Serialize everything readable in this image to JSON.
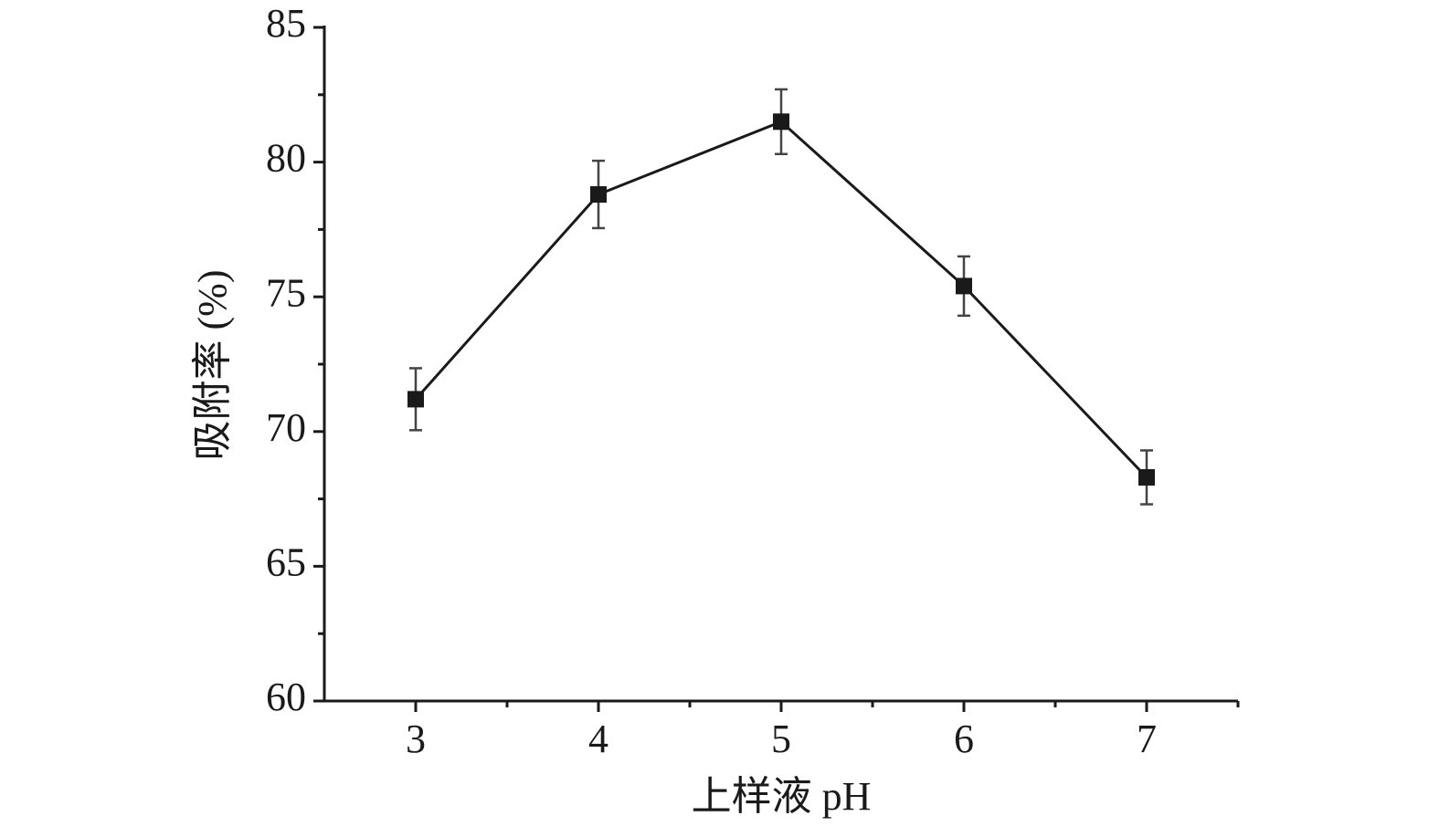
{
  "chart_data": {
    "type": "line",
    "xlabel": "上样液 pH",
    "ylabel": "吸附率 (%)",
    "x": [
      3,
      4,
      5,
      6,
      7
    ],
    "series": [
      {
        "color": "#1a1a1a",
        "values": [
          71.2,
          78.8,
          81.5,
          75.4,
          68.3
        ],
        "errors": [
          1.15,
          1.25,
          1.2,
          1.1,
          1.0
        ]
      }
    ],
    "xlim": [
      2.5,
      7.5
    ],
    "xticks": [
      3,
      4,
      5,
      6,
      7
    ],
    "xminorticks": [
      3.5,
      4.5,
      5.5,
      6.5,
      7.5
    ],
    "ylim": [
      60,
      85
    ],
    "yticks": [
      60,
      65,
      70,
      75,
      80,
      85
    ],
    "yminorticks": [
      62.5,
      67.5,
      72.5,
      77.5,
      82.5
    ],
    "grid": false
  }
}
